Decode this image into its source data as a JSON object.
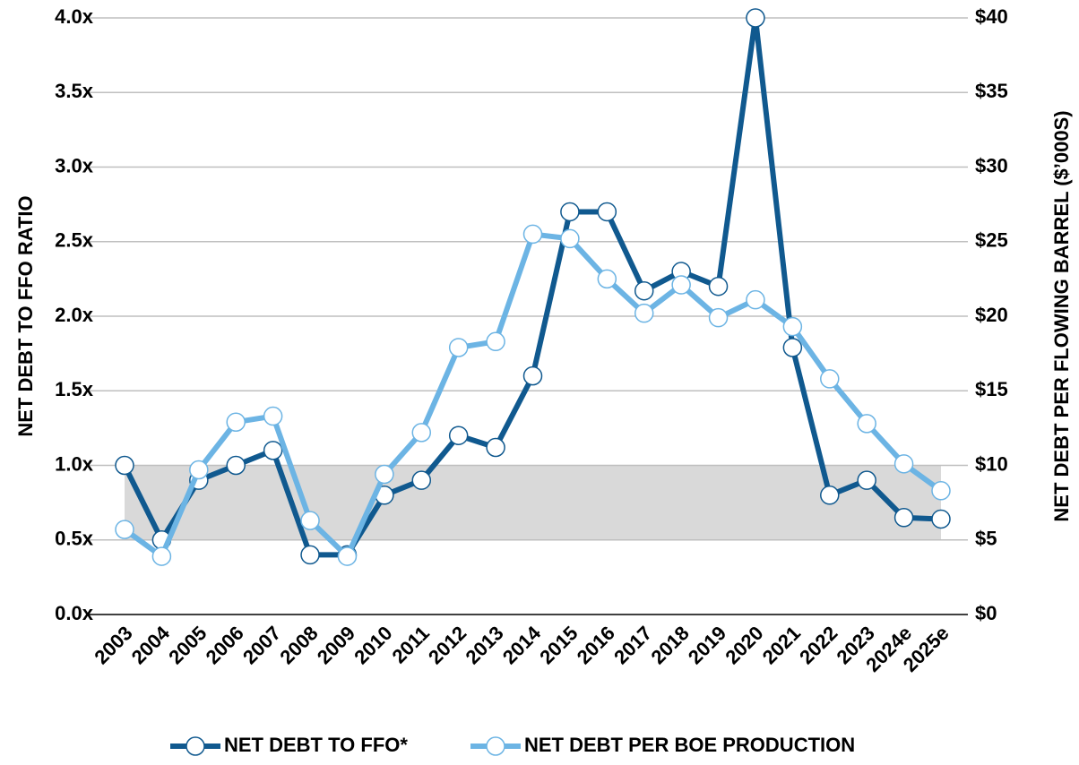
{
  "chart_data": {
    "type": "line",
    "categories": [
      "2003",
      "2004",
      "2005",
      "2006",
      "2007",
      "2008",
      "2009",
      "2010",
      "2011",
      "2012",
      "2013",
      "2014",
      "2015",
      "2016",
      "2017",
      "2018",
      "2019",
      "2020",
      "2021",
      "2022",
      "2023",
      "2024e",
      "2025e"
    ],
    "series": [
      {
        "name": "NET DEBT TO FFO*",
        "color": "#10598f",
        "axis": "y",
        "values": [
          1.0,
          0.5,
          0.9,
          1.0,
          1.1,
          0.4,
          0.4,
          0.8,
          0.9,
          1.2,
          1.12,
          1.6,
          2.7,
          2.7,
          2.17,
          2.3,
          2.2,
          4.0,
          1.79,
          0.8,
          0.9,
          0.65,
          0.64
        ]
      },
      {
        "name": "NET DEBT PER BOE PRODUCTION",
        "color": "#6cb4e4",
        "axis": "y2",
        "values": [
          5.7,
          3.9,
          9.7,
          12.9,
          13.3,
          6.3,
          3.9,
          9.4,
          12.2,
          17.9,
          18.3,
          25.5,
          25.2,
          22.5,
          20.2,
          22.1,
          19.9,
          21.1,
          19.3,
          15.8,
          12.8,
          10.1,
          8.3
        ]
      }
    ],
    "ylabel": "NET DEBT TO FFO RATIO",
    "y2label": "NET DEBT PER FLOWING BARREL ($’000S)",
    "ylim": [
      0,
      4
    ],
    "yticks": [
      {
        "value": 0,
        "label": "0.0x"
      },
      {
        "value": 0.5,
        "label": "0.5x"
      },
      {
        "value": 1,
        "label": "1.0x"
      },
      {
        "value": 1.5,
        "label": "1.5x"
      },
      {
        "value": 2,
        "label": "2.0x"
      },
      {
        "value": 2.5,
        "label": "2.5x"
      },
      {
        "value": 3,
        "label": "3.0x"
      },
      {
        "value": 3.5,
        "label": "3.5x"
      },
      {
        "value": 4,
        "label": "4.0x"
      }
    ],
    "y2lim": [
      0,
      40
    ],
    "y2ticks": [
      {
        "value": 0,
        "label": "$0"
      },
      {
        "value": 5,
        "label": "$5"
      },
      {
        "value": 10,
        "label": "$10"
      },
      {
        "value": 15,
        "label": "$15"
      },
      {
        "value": 20,
        "label": "$20"
      },
      {
        "value": 25,
        "label": "$25"
      },
      {
        "value": 30,
        "label": "$30"
      },
      {
        "value": 35,
        "label": "$35"
      },
      {
        "value": 40,
        "label": "$40"
      }
    ],
    "shaded_band": [
      0.5,
      1.0
    ],
    "grid": true,
    "legend": "bottom"
  }
}
